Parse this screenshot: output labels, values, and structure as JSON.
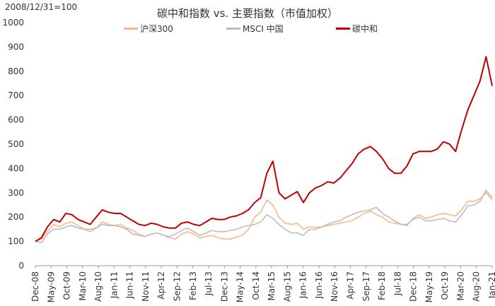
{
  "chart_data": {
    "type": "line",
    "note": "2008/12/31=100",
    "title": "碳中和指数 vs. 主要指数（市值加权）",
    "xlabel": "",
    "ylabel": "",
    "ylim": [
      0,
      1000
    ],
    "yticks": [
      "0",
      "100",
      "200",
      "300",
      "400",
      "500",
      "600",
      "700",
      "800",
      "900",
      "1000"
    ],
    "xticks": [
      "Dec-08",
      "May-09",
      "Oct-09",
      "Mar-10",
      "Aug-10",
      "Jan-11",
      "Jun-11",
      "Nov-11",
      "Apr-12",
      "Sep-12",
      "Feb-13",
      "Jul-13",
      "Dec-13",
      "May-14",
      "Oct-14",
      "Mar-15",
      "Aug-15",
      "Jan-16",
      "Jun-16",
      "Nov-16",
      "Apr-17",
      "Sep-17",
      "Feb-18",
      "Jul-18",
      "Dec-18",
      "May-19",
      "Oct-19",
      "Mar-20",
      "Aug-20",
      "Jan-21"
    ],
    "x": [
      "Dec-08",
      "Feb-09",
      "Apr-09",
      "Jun-09",
      "Aug-09",
      "Oct-09",
      "Dec-09",
      "Feb-10",
      "Apr-10",
      "Jun-10",
      "Aug-10",
      "Oct-10",
      "Dec-10",
      "Feb-11",
      "Apr-11",
      "Jun-11",
      "Aug-11",
      "Oct-11",
      "Dec-11",
      "Feb-12",
      "Apr-12",
      "Jun-12",
      "Aug-12",
      "Oct-12",
      "Dec-12",
      "Feb-13",
      "Apr-13",
      "Jun-13",
      "Aug-13",
      "Oct-13",
      "Dec-13",
      "Feb-14",
      "Apr-14",
      "Jun-14",
      "Aug-14",
      "Oct-14",
      "Dec-14",
      "Feb-15",
      "Apr-15",
      "Jun-15",
      "Jul-15",
      "Aug-15",
      "Oct-15",
      "Dec-15",
      "Feb-16",
      "Apr-16",
      "Jun-16",
      "Aug-16",
      "Oct-16",
      "Dec-16",
      "Feb-17",
      "Apr-17",
      "Jun-17",
      "Aug-17",
      "Oct-17",
      "Dec-17",
      "Feb-18",
      "Apr-18",
      "Jun-18",
      "Aug-18",
      "Oct-18",
      "Dec-18",
      "Feb-19",
      "Apr-19",
      "Jun-19",
      "Aug-19",
      "Oct-19",
      "Dec-19",
      "Feb-20",
      "Apr-20",
      "Jun-20",
      "Aug-20",
      "Oct-20",
      "Dec-20",
      "Jan-21",
      "Feb-21"
    ],
    "series": [
      {
        "name": "沪深300",
        "color": "#F7B98A",
        "values": [
          100,
          110,
          140,
          170,
          160,
          175,
          180,
          165,
          150,
          140,
          155,
          180,
          170,
          165,
          170,
          155,
          145,
          130,
          120,
          130,
          135,
          125,
          115,
          110,
          130,
          140,
          130,
          115,
          120,
          125,
          115,
          110,
          110,
          118,
          125,
          150,
          200,
          220,
          270,
          250,
          200,
          175,
          170,
          175,
          150,
          160,
          158,
          160,
          165,
          170,
          175,
          180,
          185,
          200,
          215,
          225,
          210,
          200,
          180,
          175,
          170,
          165,
          195,
          210,
          195,
          200,
          210,
          215,
          210,
          205,
          230,
          265,
          265,
          275,
          300,
          270
        ]
      },
      {
        "name": "MSCI 中国",
        "color": "#BDBDBD",
        "values": [
          100,
          95,
          130,
          150,
          150,
          160,
          165,
          155,
          150,
          150,
          155,
          170,
          165,
          165,
          160,
          150,
          130,
          125,
          120,
          130,
          135,
          125,
          120,
          130,
          145,
          155,
          140,
          125,
          135,
          145,
          140,
          140,
          145,
          150,
          160,
          165,
          170,
          180,
          210,
          195,
          170,
          150,
          135,
          135,
          125,
          150,
          150,
          160,
          170,
          180,
          185,
          200,
          210,
          220,
          225,
          230,
          240,
          215,
          200,
          185,
          170,
          170,
          190,
          200,
          185,
          185,
          190,
          195,
          185,
          180,
          210,
          245,
          250,
          265,
          310,
          280
        ]
      },
      {
        "name": "碳中和",
        "color": "#C00000",
        "values": [
          100,
          115,
          160,
          190,
          180,
          215,
          210,
          190,
          180,
          170,
          200,
          230,
          220,
          215,
          215,
          200,
          185,
          170,
          165,
          175,
          170,
          160,
          155,
          155,
          175,
          180,
          170,
          165,
          180,
          195,
          190,
          190,
          200,
          205,
          215,
          230,
          260,
          280,
          380,
          430,
          300,
          275,
          290,
          305,
          260,
          300,
          320,
          330,
          345,
          340,
          360,
          390,
          420,
          460,
          480,
          490,
          470,
          440,
          400,
          380,
          380,
          410,
          460,
          470,
          470,
          470,
          480,
          510,
          500,
          470,
          560,
          640,
          700,
          760,
          860,
          740
        ]
      }
    ],
    "legend_position": "top",
    "grid": false
  }
}
